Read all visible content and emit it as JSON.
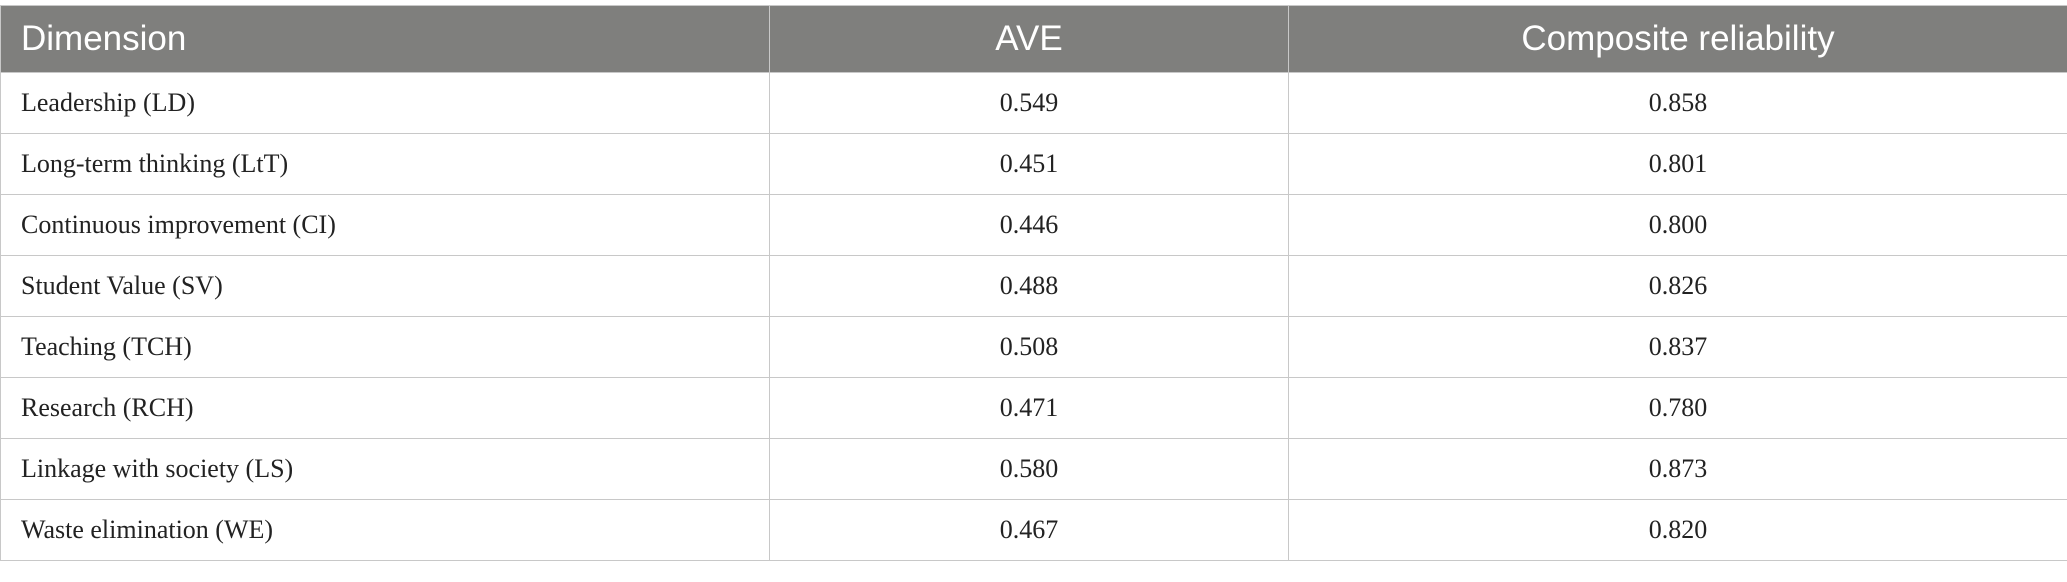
{
  "table": {
    "header": [
      "Dimension",
      "AVE",
      "Composite reliability"
    ],
    "rows": [
      [
        "Leadership (LD)",
        "0.549",
        "0.858"
      ],
      [
        "Long-term thinking (LtT)",
        "0.451",
        "0.801"
      ],
      [
        "Continuous improvement (CI)",
        "0.446",
        "0.800"
      ],
      [
        "Student Value (SV)",
        "0.488",
        "0.826"
      ],
      [
        "Teaching (TCH)",
        "0.508",
        "0.837"
      ],
      [
        "Research (RCH)",
        "0.471",
        "0.780"
      ],
      [
        "Linkage with society (LS)",
        "0.580",
        "0.873"
      ],
      [
        "Waste elimination (WE)",
        "0.467",
        "0.820"
      ]
    ]
  }
}
